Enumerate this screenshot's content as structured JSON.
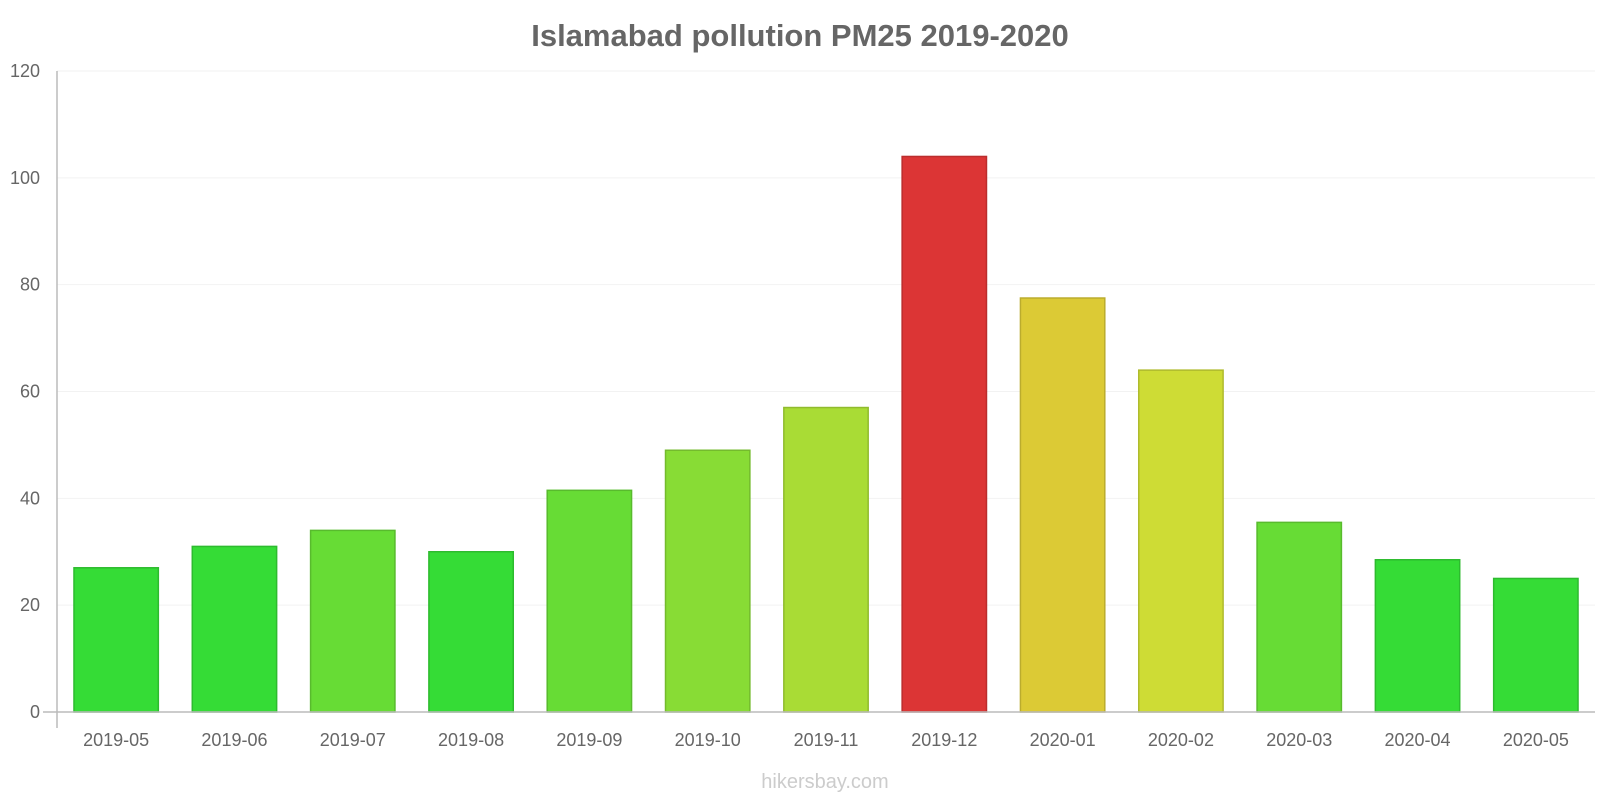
{
  "chart_data": {
    "type": "bar",
    "title": "Islamabad pollution PM25 2019-2020",
    "xlabel": "",
    "ylabel": "",
    "categories": [
      "2019-05",
      "2019-06",
      "2019-07",
      "2019-08",
      "2019-09",
      "2019-10",
      "2019-11",
      "2019-12",
      "2020-01",
      "2020-02",
      "2020-03",
      "2020-04",
      "2020-05"
    ],
    "values": [
      27,
      31,
      34,
      30,
      41.5,
      49,
      57,
      104,
      77.5,
      64,
      35.5,
      28.5,
      25
    ],
    "bar_colors": [
      "#35dc36",
      "#35dc36",
      "#67dc35",
      "#35dc36",
      "#67dc35",
      "#88dc35",
      "#a9dc35",
      "#dc3535",
      "#dcca35",
      "#cedc35",
      "#67dc35",
      "#35dc36",
      "#35dc36"
    ],
    "ylim": [
      0,
      120
    ],
    "yticks": [
      0,
      20,
      40,
      60,
      80,
      100,
      120
    ],
    "grid": true,
    "legend": "none"
  },
  "watermark": "hikersbay.com"
}
